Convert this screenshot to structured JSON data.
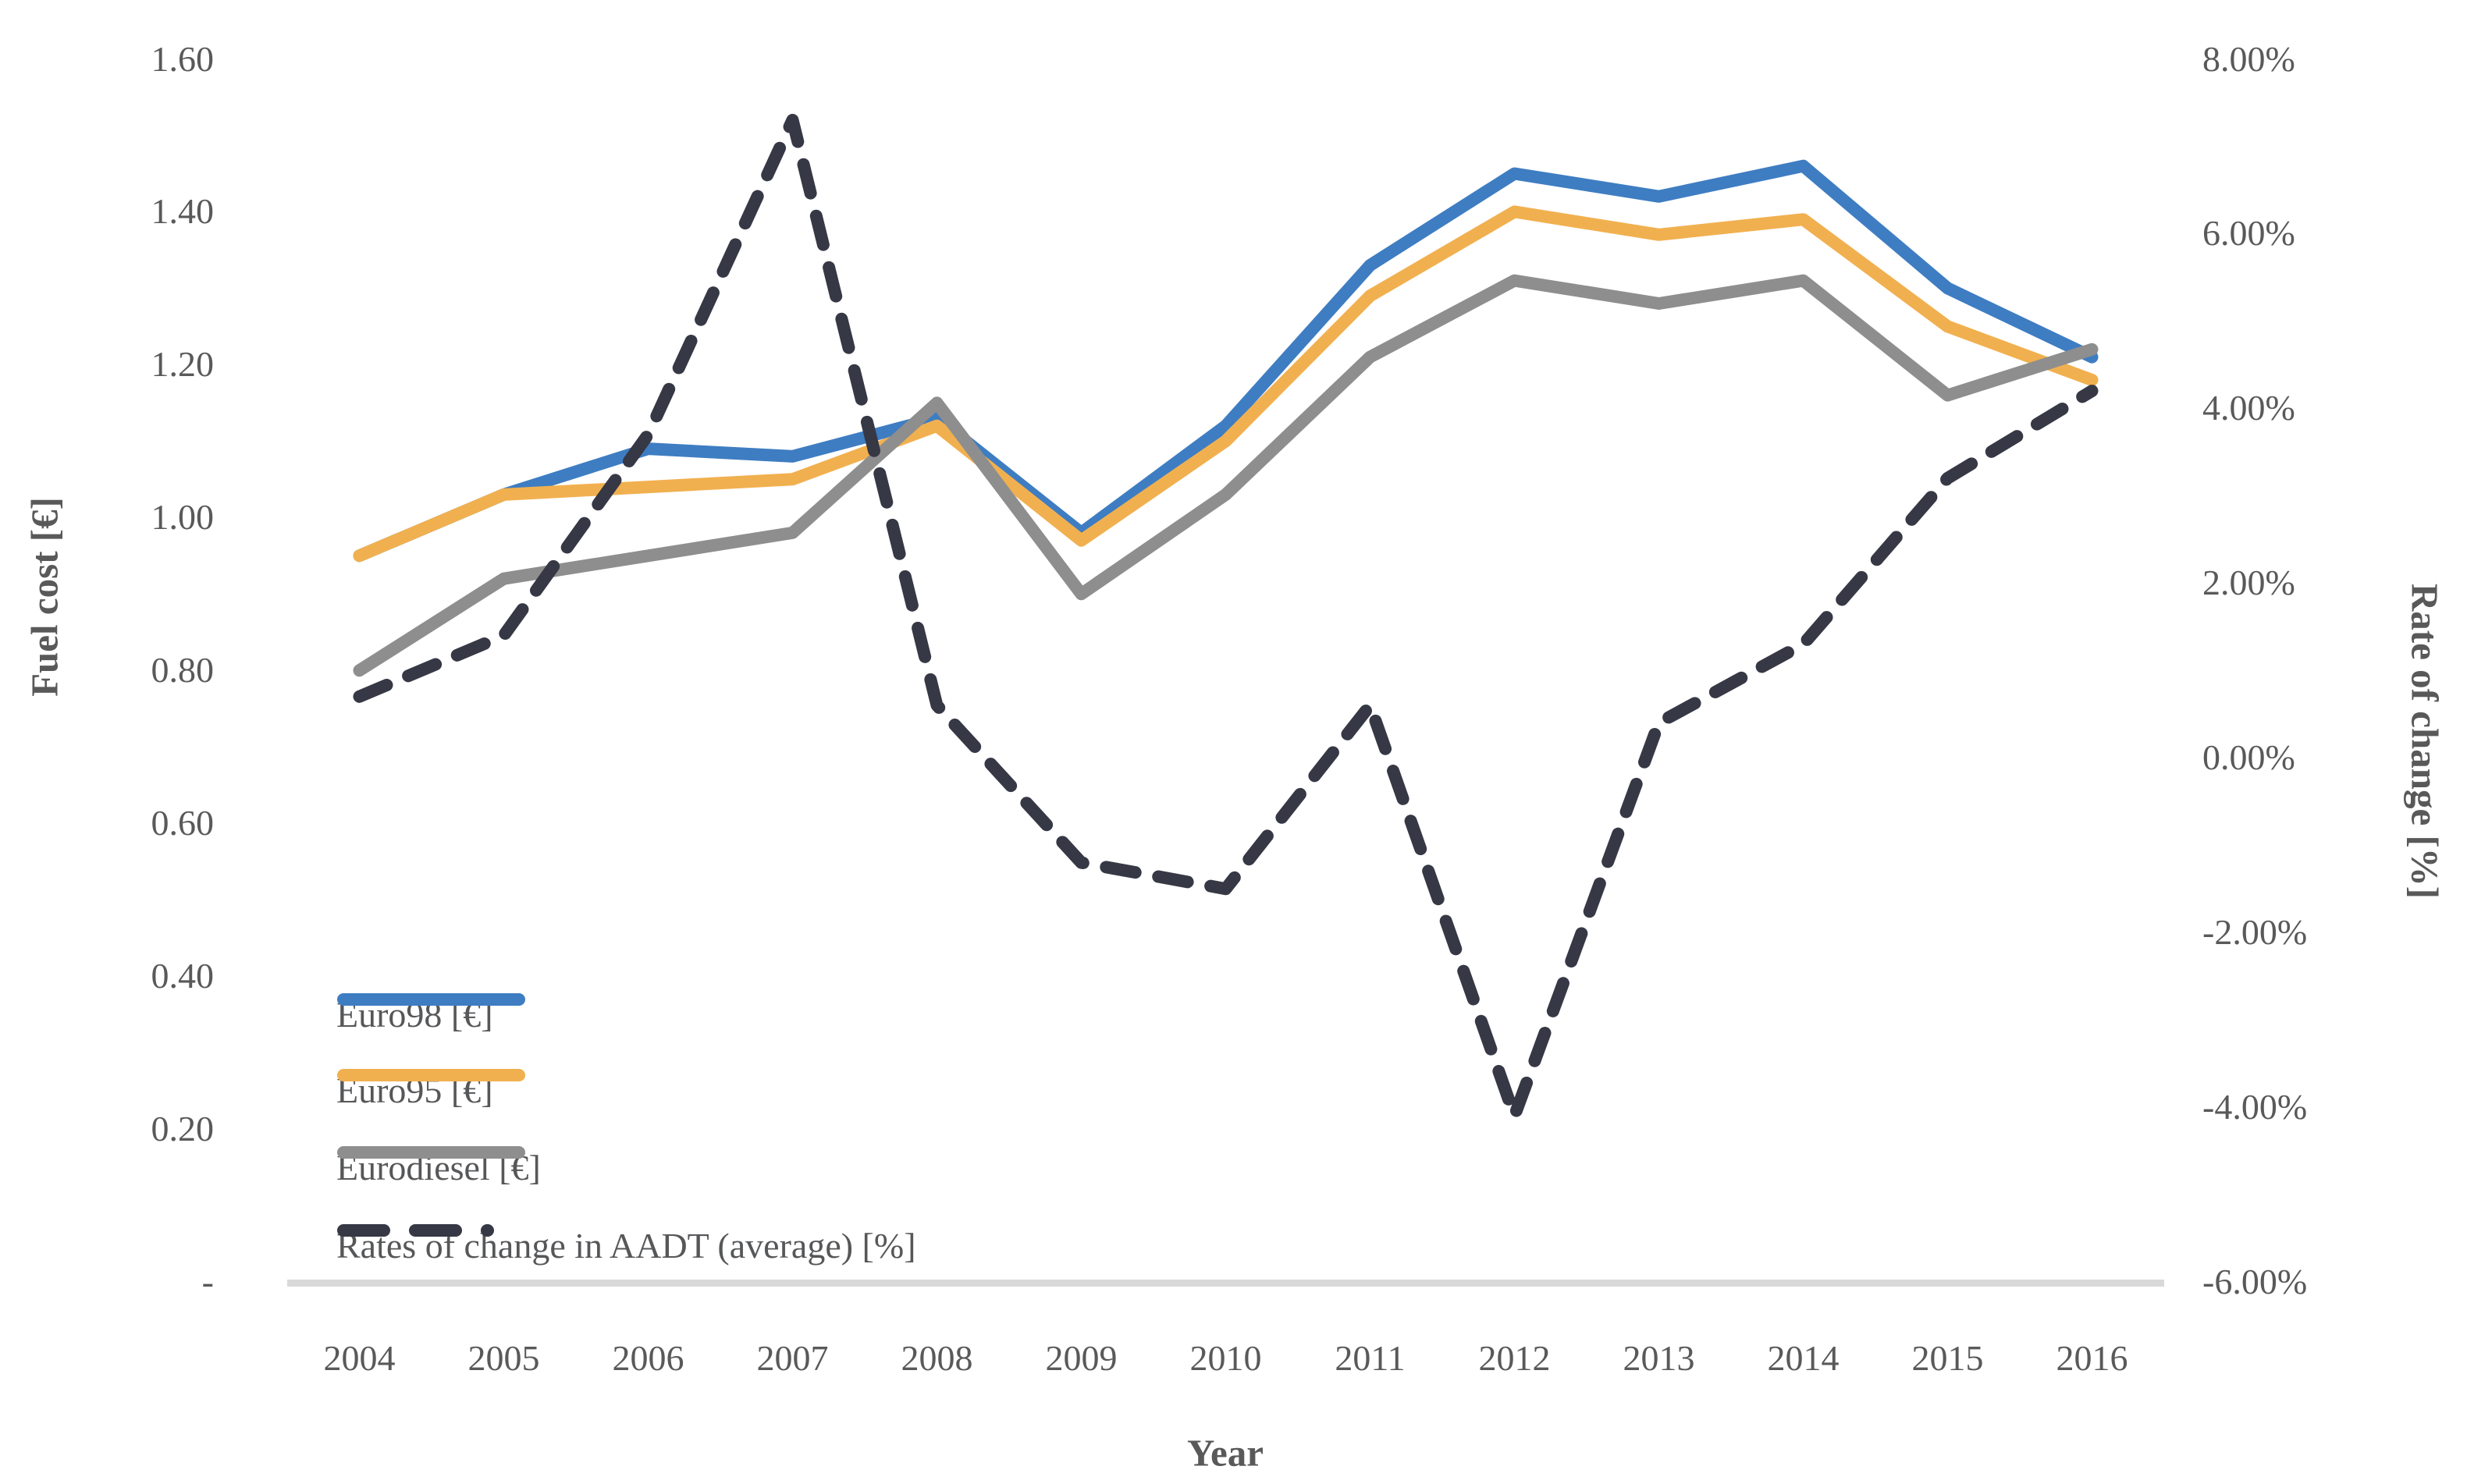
{
  "chart_data": {
    "type": "line",
    "title": "",
    "xlabel": "Year",
    "ylabel_left": "Fuel cost [€]",
    "ylabel_right": "Rate of change [%]",
    "categories": [
      "2004",
      "2005",
      "2006",
      "2007",
      "2008",
      "2009",
      "2010",
      "2011",
      "2012",
      "2013",
      "2014",
      "2015",
      "2016"
    ],
    "y_left_axis": {
      "ticks": [
        "1.60",
        "1.40",
        "1.20",
        "1.00",
        "0.80",
        "0.60",
        "0.40",
        "0.20",
        "-"
      ],
      "min": 0,
      "max": 1.6,
      "grid": false
    },
    "y_right_axis": {
      "ticks": [
        "8.00%",
        "6.00%",
        "4.00%",
        "2.00%",
        "0.00%",
        "-2.00%",
        "-4.00%",
        "-6.00%"
      ],
      "min_pct": -6,
      "max_pct": 8,
      "grid": false
    },
    "series": [
      {
        "name": "Euro98 [€]",
        "axis": "left",
        "style": "solid",
        "color": "#3E7DC2",
        "values": [
          0.95,
          1.03,
          1.09,
          1.08,
          1.13,
          0.98,
          1.12,
          1.33,
          1.45,
          1.42,
          1.46,
          1.3,
          1.21
        ]
      },
      {
        "name": "Euro95 [€]",
        "axis": "left",
        "style": "solid",
        "color": "#F1B04F",
        "values": [
          0.95,
          1.03,
          1.04,
          1.05,
          1.12,
          0.97,
          1.1,
          1.29,
          1.4,
          1.37,
          1.39,
          1.25,
          1.18
        ]
      },
      {
        "name": "Eurodiesel [€]",
        "axis": "left",
        "style": "solid",
        "color": "#8E8E8E",
        "values": [
          0.8,
          0.92,
          0.95,
          0.98,
          1.15,
          0.9,
          1.03,
          1.21,
          1.31,
          1.28,
          1.31,
          1.16,
          1.22
        ]
      },
      {
        "name": "Rates of change in AADT (average) [%]",
        "axis": "right",
        "style": "dashed",
        "color": "#363845",
        "values_pct": [
          0.7,
          1.4,
          3.7,
          7.3,
          0.6,
          -1.2,
          -1.5,
          0.6,
          -4.1,
          0.4,
          1.3,
          3.2,
          4.2
        ]
      }
    ],
    "legend_position": "inside-bottom-left",
    "axis_line_color": "#D9D9D9",
    "text_color": "#595959"
  }
}
